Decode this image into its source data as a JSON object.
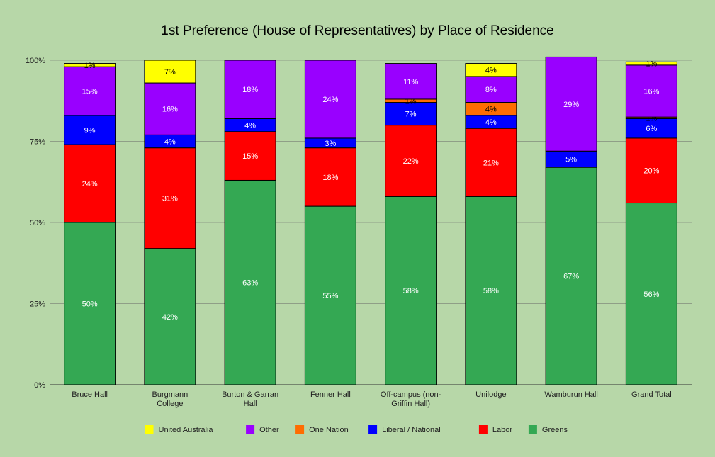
{
  "chart_data": {
    "type": "bar",
    "stacked": true,
    "title": "1st Preference (House of Representatives) by Place of Residence",
    "xlabel": "",
    "ylabel": "",
    "ylim": [
      0,
      100
    ],
    "yticks": [
      "0%",
      "25%",
      "50%",
      "75%",
      "100%"
    ],
    "grid": true,
    "legend_position": "bottom",
    "categories": [
      [
        "Bruce Hall"
      ],
      [
        "Burgmann",
        "College"
      ],
      [
        "Burton & Garran",
        "Hall"
      ],
      [
        "Fenner Hall"
      ],
      [
        "Off-campus (non-",
        "Griffin Hall)"
      ],
      [
        "Unilodge"
      ],
      [
        "Wamburun Hall"
      ],
      [
        "Grand Total"
      ]
    ],
    "series": [
      {
        "name": "Greens",
        "color": "#34a853",
        "values": [
          50,
          42,
          63,
          55,
          58,
          58,
          67,
          56
        ],
        "labels": [
          "50%",
          "42%",
          "63%",
          "55%",
          "58%",
          "58%",
          "67%",
          "56%"
        ]
      },
      {
        "name": "Labor",
        "color": "#ff0000",
        "values": [
          24,
          31,
          15,
          18,
          22,
          21,
          0,
          20
        ],
        "labels": [
          "24%",
          "31%",
          "15%",
          "18%",
          "22%",
          "21%",
          "",
          "20%"
        ]
      },
      {
        "name": "Liberal / National",
        "color": "#0000ff",
        "values": [
          9,
          4,
          4,
          3,
          7,
          4,
          5,
          6
        ],
        "labels": [
          "9%",
          "4%",
          "4%",
          "3%",
          "7%",
          "4%",
          "5%",
          "6%"
        ]
      },
      {
        "name": "One Nation",
        "color": "#ff6d01",
        "values": [
          0,
          0,
          0,
          0,
          1,
          4,
          0,
          0.5
        ],
        "labels": [
          "",
          "",
          "",
          "",
          "1%",
          "4%",
          "",
          "1%"
        ]
      },
      {
        "name": "Other",
        "color": "#9900ff",
        "values": [
          15,
          16,
          18,
          24,
          11,
          8,
          29,
          16
        ],
        "labels": [
          "15%",
          "16%",
          "18%",
          "24%",
          "11%",
          "8%",
          "29%",
          "16%"
        ]
      },
      {
        "name": "United Australia",
        "color": "#ffff00",
        "values": [
          1,
          7,
          0,
          0,
          0,
          4,
          0,
          1
        ],
        "labels": [
          "1%",
          "7%",
          "",
          "",
          "",
          "4%",
          "",
          "1%"
        ]
      }
    ],
    "legend_order": [
      "United Australia",
      "Other",
      "One Nation",
      "Liberal / National",
      "Labor",
      "Greens"
    ]
  }
}
